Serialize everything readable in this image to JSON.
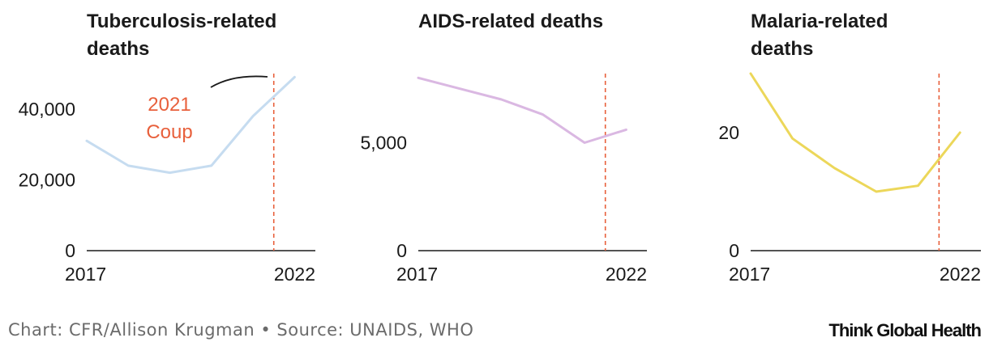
{
  "chart_data": [
    {
      "type": "line",
      "title": "Tuberculosis-related deaths",
      "x": [
        2017,
        2018,
        2019,
        2020,
        2021,
        2022
      ],
      "series": [
        {
          "values": [
            31000,
            24000,
            22000,
            24000,
            38000,
            49000
          ],
          "color": "#c6dcf0"
        }
      ],
      "xticks": [
        "2017",
        "2022"
      ],
      "yticks": [
        {
          "value": 0,
          "label": "0"
        },
        {
          "value": 20000,
          "label": "20,000"
        },
        {
          "value": 40000,
          "label": "40,000"
        }
      ],
      "ylim": [
        0,
        50000
      ],
      "xlim": [
        2017,
        2022.5
      ],
      "marker": {
        "x": 2021.5,
        "color": "#e8603c"
      },
      "annotation": {
        "lines": [
          "2021",
          "Coup"
        ],
        "color": "#e8603c"
      }
    },
    {
      "type": "line",
      "title": "AIDS-related deaths",
      "x": [
        2017,
        2018,
        2019,
        2020,
        2021,
        2022
      ],
      "series": [
        {
          "values": [
            8000,
            7500,
            7000,
            6300,
            5000,
            5600
          ],
          "color": "#dab8e2"
        }
      ],
      "xticks": [
        "2017",
        "2022"
      ],
      "yticks": [
        {
          "value": 0,
          "label": "0"
        },
        {
          "value": 5000,
          "label": "5,000"
        }
      ],
      "ylim": [
        0,
        8200
      ],
      "xlim": [
        2017,
        2022.5
      ],
      "marker": {
        "x": 2021.5,
        "color": "#e8603c"
      }
    },
    {
      "type": "line",
      "title": "Malaria-related deaths",
      "x": [
        2017,
        2018,
        2019,
        2020,
        2021,
        2022
      ],
      "series": [
        {
          "values": [
            30,
            19,
            14,
            10,
            11,
            20
          ],
          "color": "#ecd75a"
        }
      ],
      "xticks": [
        "2017",
        "2022"
      ],
      "yticks": [
        {
          "value": 0,
          "label": "0"
        },
        {
          "value": 20,
          "label": "20"
        }
      ],
      "ylim": [
        0,
        30
      ],
      "xlim": [
        2017,
        2022.5
      ],
      "marker": {
        "x": 2021.5,
        "color": "#e8603c"
      }
    }
  ],
  "footer": {
    "source": "Chart: CFR/Allison Krugman • Source: UNAIDS, WHO",
    "brand": "Think Global Health"
  }
}
